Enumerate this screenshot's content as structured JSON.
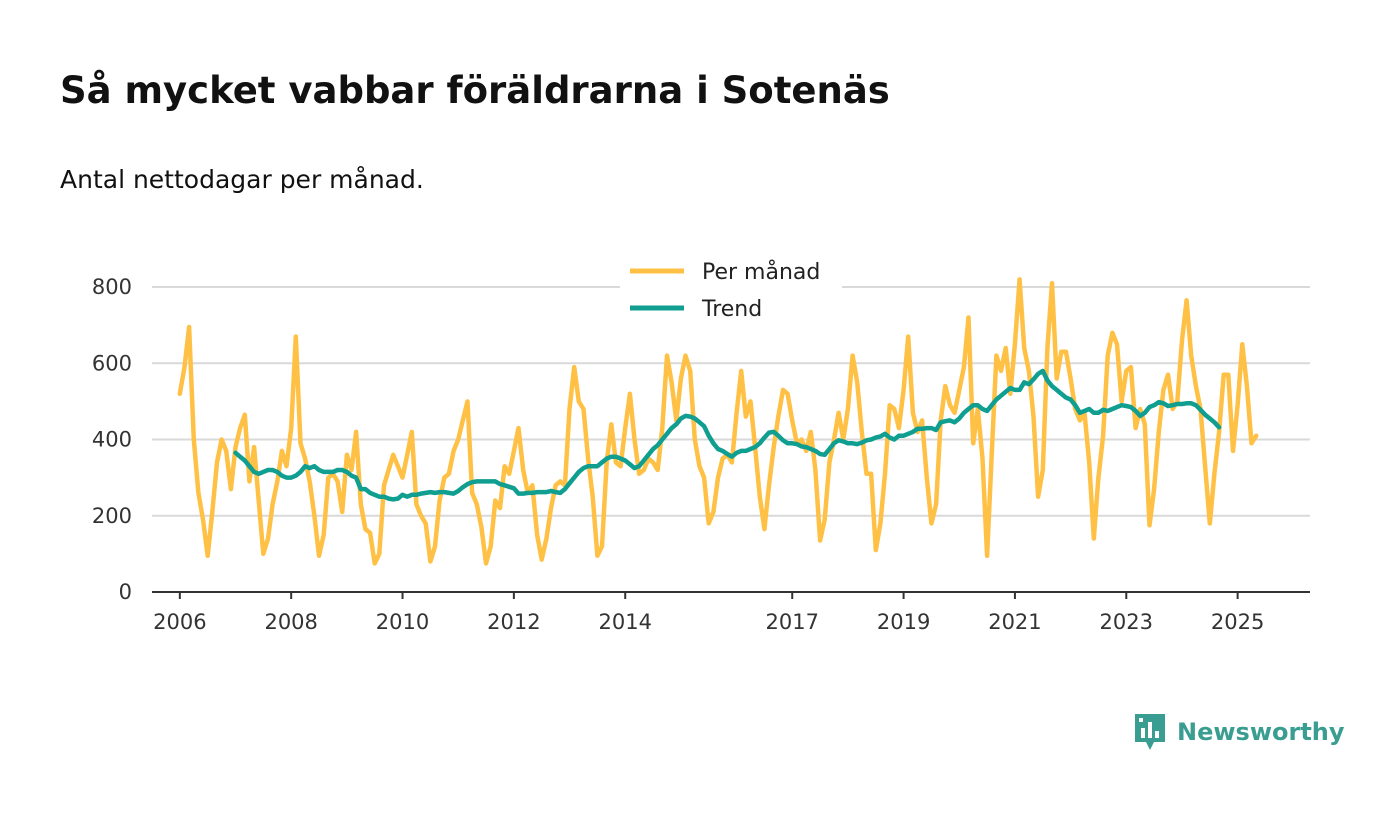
{
  "title": "Så mycket vabbar föräldrarna i Sotenäs",
  "subtitle": "Antal nettodagar per månad.",
  "brand": {
    "name": "Newsworthy",
    "icon": "newsworthy-logo-icon"
  },
  "colors": {
    "monthly": "#ffc145",
    "trend": "#0f9e90",
    "grid": "#d9d9d9",
    "axis": "#333333",
    "brand": "#3a9d91"
  },
  "chart_data": {
    "type": "line",
    "title": "Så mycket vabbar föräldrarna i Sotenäs",
    "subtitle": "Antal nettodagar per månad.",
    "xlabel": "",
    "ylabel": "",
    "grid": true,
    "legend_position": "top-center",
    "ylim": [
      0,
      800
    ],
    "yticks": [
      0,
      200,
      400,
      600,
      800
    ],
    "xlim": [
      2005.5,
      2026.3
    ],
    "xticks": [
      {
        "value": 2006,
        "label": "2006"
      },
      {
        "value": 2008,
        "label": "2008"
      },
      {
        "value": 2010,
        "label": "2010"
      },
      {
        "value": 2012,
        "label": "2012"
      },
      {
        "value": 2014,
        "label": "2014"
      },
      {
        "value": 2017,
        "label": "2017"
      },
      {
        "value": 2019,
        "label": "2019"
      },
      {
        "value": 2021,
        "label": "2021"
      },
      {
        "value": 2023,
        "label": "2023"
      },
      {
        "value": 2025,
        "label": "2025"
      }
    ],
    "series": [
      {
        "name": "Per månad",
        "start_year": 2006,
        "values": [
          520,
          590,
          695,
          400,
          260,
          190,
          95,
          210,
          340,
          400,
          370,
          270,
          380,
          430,
          465,
          290,
          380,
          240,
          100,
          140,
          230,
          290,
          370,
          330,
          430,
          670,
          390,
          350,
          290,
          200,
          95,
          150,
          300,
          310,
          290,
          210,
          360,
          320,
          420,
          230,
          165,
          155,
          75,
          100,
          280,
          320,
          360,
          330,
          300,
          360,
          420,
          230,
          200,
          180,
          80,
          120,
          240,
          300,
          310,
          370,
          400,
          450,
          500,
          260,
          230,
          170,
          75,
          120,
          240,
          220,
          330,
          310,
          370,
          430,
          320,
          260,
          280,
          150,
          85,
          140,
          220,
          280,
          290,
          280,
          480,
          590,
          500,
          480,
          350,
          250,
          95,
          120,
          340,
          440,
          340,
          330,
          430,
          520,
          400,
          310,
          320,
          350,
          340,
          320,
          430,
          620,
          550,
          450,
          560,
          620,
          580,
          400,
          330,
          300,
          180,
          210,
          300,
          350,
          360,
          340,
          470,
          580,
          460,
          500,
          380,
          250,
          165,
          280,
          380,
          460,
          530,
          520,
          450,
          390,
          400,
          370,
          420,
          320,
          135,
          190,
          340,
          400,
          470,
          400,
          480,
          620,
          550,
          420,
          310,
          310,
          110,
          180,
          310,
          490,
          480,
          430,
          530,
          670,
          470,
          420,
          450,
          300,
          180,
          230,
          450,
          540,
          490,
          470,
          530,
          590,
          720,
          390,
          480,
          350,
          95,
          360,
          620,
          580,
          640,
          520,
          650,
          820,
          640,
          580,
          460,
          250,
          320,
          640,
          810,
          560,
          630,
          630,
          560,
          480,
          450,
          470,
          340,
          140,
          300,
          410,
          620,
          680,
          650,
          500,
          580,
          590,
          430,
          480,
          440,
          175,
          270,
          420,
          530,
          570,
          480,
          500,
          660,
          765,
          620,
          540,
          480,
          330,
          180,
          310,
          420,
          570,
          570,
          370,
          490,
          650,
          540,
          390,
          410
        ]
      },
      {
        "name": "Trend",
        "start_year": 2007,
        "values": [
          365,
          355,
          345,
          330,
          315,
          310,
          315,
          320,
          320,
          315,
          305,
          300,
          300,
          305,
          315,
          330,
          325,
          330,
          320,
          315,
          315,
          315,
          320,
          320,
          315,
          305,
          300,
          270,
          270,
          260,
          255,
          250,
          250,
          245,
          243,
          245,
          255,
          250,
          255,
          255,
          258,
          260,
          262,
          260,
          262,
          262,
          260,
          258,
          265,
          275,
          283,
          288,
          290,
          290,
          290,
          290,
          290,
          283,
          280,
          276,
          272,
          258,
          258,
          260,
          260,
          262,
          262,
          262,
          265,
          262,
          260,
          270,
          285,
          300,
          315,
          325,
          330,
          330,
          330,
          340,
          350,
          355,
          355,
          350,
          345,
          335,
          325,
          330,
          345,
          360,
          375,
          385,
          400,
          415,
          430,
          440,
          455,
          462,
          460,
          455,
          445,
          435,
          410,
          390,
          375,
          370,
          362,
          355,
          365,
          370,
          370,
          375,
          380,
          390,
          405,
          418,
          420,
          410,
          398,
          390,
          390,
          388,
          382,
          380,
          375,
          370,
          362,
          360,
          375,
          390,
          398,
          395,
          390,
          390,
          388,
          392,
          398,
          400,
          405,
          408,
          415,
          405,
          400,
          410,
          410,
          415,
          420,
          428,
          428,
          430,
          430,
          425,
          445,
          448,
          450,
          445,
          455,
          470,
          480,
          490,
          490,
          480,
          475,
          490,
          505,
          515,
          525,
          535,
          530,
          530,
          550,
          545,
          558,
          572,
          580,
          555,
          540,
          530,
          520,
          510,
          505,
          490,
          470,
          475,
          480,
          470,
          470,
          478,
          475,
          480,
          485,
          490,
          488,
          485,
          475,
          462,
          470,
          485,
          490,
          498,
          495,
          488,
          490,
          493,
          493,
          495,
          495,
          490,
          478,
          465,
          455,
          445,
          432
        ]
      }
    ]
  }
}
